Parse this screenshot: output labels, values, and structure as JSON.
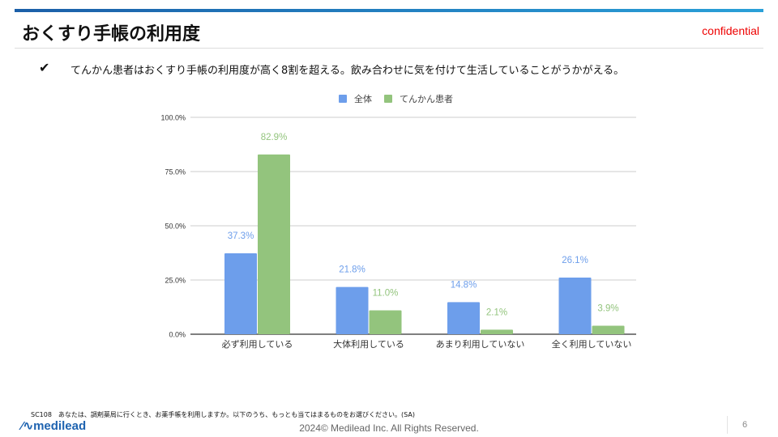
{
  "header": {
    "title": "おくすり手帳の利用度",
    "confidential": "confidential"
  },
  "bullet": {
    "mark": "✔",
    "text": "てんかん患者はおくすり手帳の利用度が高く8割を超える。飲み合わせに気を付けて生活していることがうかがえる。"
  },
  "chart_data": {
    "type": "bar",
    "categories": [
      "必ず利用している",
      "大体利用している",
      "あまり利用していない",
      "全く利用していない"
    ],
    "series": [
      {
        "name": "全体",
        "color": "#6d9eeb",
        "values": [
          37.3,
          21.8,
          14.8,
          26.1
        ]
      },
      {
        "name": "てんかん患者",
        "color": "#93c47d",
        "values": [
          82.9,
          11.0,
          2.1,
          3.9
        ]
      }
    ],
    "yticks": [
      "0.0%",
      "25.0%",
      "50.0%",
      "75.0%",
      "100.0%"
    ],
    "ylim": [
      0,
      100
    ],
    "legend": "top",
    "grid": true
  },
  "footer": {
    "note": "SC108　あなたは、調剤薬局に行くとき、お薬手帳を利用しますか。以下のうち、もっとも当てはまるものをお選びください。(SA)",
    "logo": "medilead",
    "copyright": "2024© Medilead Inc. All Rights Reserved.",
    "page": "6"
  }
}
